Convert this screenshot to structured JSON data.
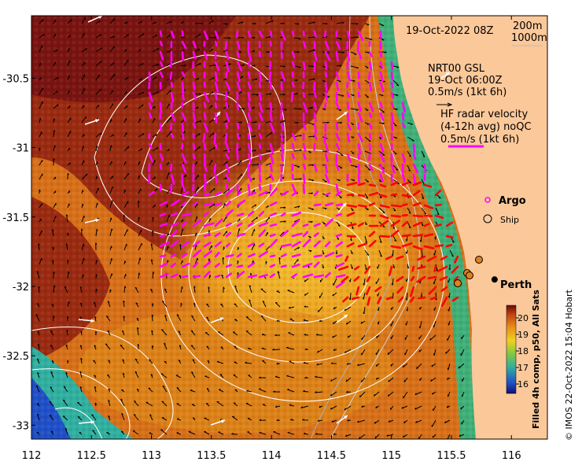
{
  "map": {
    "date_title": "19-Oct-2022 08Z",
    "depth_legend": [
      "200m",
      "1000m"
    ],
    "x_ticks": [
      "112",
      "112.5",
      "113",
      "113.5",
      "114",
      "114.5",
      "115",
      "115.5",
      "116"
    ],
    "y_ticks": [
      "-30.5",
      "-31",
      "-31.5",
      "-32",
      "-32.5",
      "-33"
    ],
    "lon_range": [
      112,
      116.3
    ],
    "lat_range": [
      -33.1,
      -30.05
    ],
    "model_block": [
      "NRT00 GSL",
      "19-Oct 06:00Z",
      "0.5m/s (1kt 6h)"
    ],
    "radar_block": [
      "HF radar velocity",
      "(4-12h avg) noQC",
      "0.5m/s (1kt 6h)"
    ],
    "legend": {
      "argo": "Argo",
      "ship": "Ship",
      "argo_color": "#ff00ff"
    },
    "city": {
      "name": "Perth",
      "lon": 115.86,
      "lat": -31.95
    },
    "colorbar": {
      "ticks": [
        "20",
        "19",
        "18",
        "17",
        "16"
      ],
      "label": "Filled 4h comp, p50, All Sats"
    },
    "credit": "© IMOS 22-Oct-2022 15:04 Hobart",
    "colors": {
      "land": "#fbc89a",
      "warm": "#b84010",
      "hot": "#7a1010",
      "mid": "#e89018",
      "cool": "#30b0a0",
      "cold": "#2040b0",
      "radar_mag": "#ff00ff",
      "radar_red": "#ff0000"
    }
  }
}
